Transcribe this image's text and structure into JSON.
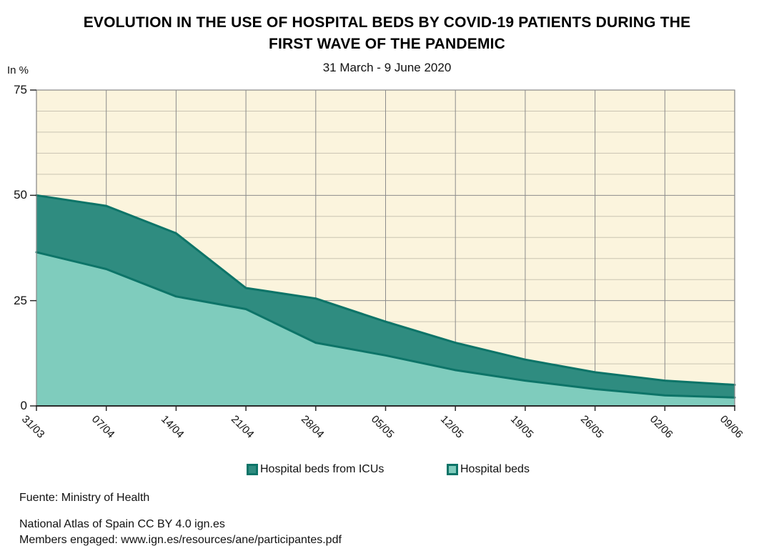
{
  "header": {
    "title_lines": [
      "EVOLUTION IN THE USE OF HOSPITAL BEDS BY COVID-19 PATIENTS DURING THE",
      "FIRST WAVE OF THE PANDEMIC"
    ],
    "subtitle": "31 March - 9 June 2020"
  },
  "chart_data": {
    "type": "area",
    "stacked": true,
    "title": "EVOLUTION IN THE USE OF HOSPITAL BEDS BY COVID-19 PATIENTS DURING THE FIRST WAVE OF THE PANDEMIC",
    "subtitle": "31 March - 9 June 2020",
    "unit_label": "In %",
    "categories": [
      "31/03",
      "07/04",
      "14/04",
      "21/04",
      "28/04",
      "05/05",
      "12/05",
      "19/05",
      "26/05",
      "02/06",
      "09/06"
    ],
    "y_ticks": [
      75,
      50,
      25,
      0
    ],
    "ylim": [
      0,
      75
    ],
    "grid_minor_step": 5,
    "grid_on": true,
    "legend_position": "bottom",
    "series": [
      {
        "name": "Hospital beds from ICUs",
        "fill": "#2f8c80",
        "top_line": [
          50,
          47.5,
          41,
          28,
          25.5,
          20,
          15,
          11,
          8,
          6,
          5
        ]
      },
      {
        "name": "Hospital beds",
        "fill": "#7fccbd",
        "top_line": [
          36.5,
          32.5,
          26,
          23,
          15,
          12,
          8.5,
          6,
          4,
          2.5,
          2
        ]
      }
    ],
    "line_color": "#0d7468",
    "plot_bg": "#fbf4dd",
    "grid_major_color": "#8c8c8c",
    "grid_minor_color": "#c9c3b2",
    "axis_color": "#2b2b2b"
  },
  "footer": {
    "source": "Fuente: Ministry of Health",
    "license": "National Atlas of Spain CC BY 4.0 ign.es",
    "members": "Members engaged: www.ign.es/resources/ane/participantes.pdf"
  }
}
